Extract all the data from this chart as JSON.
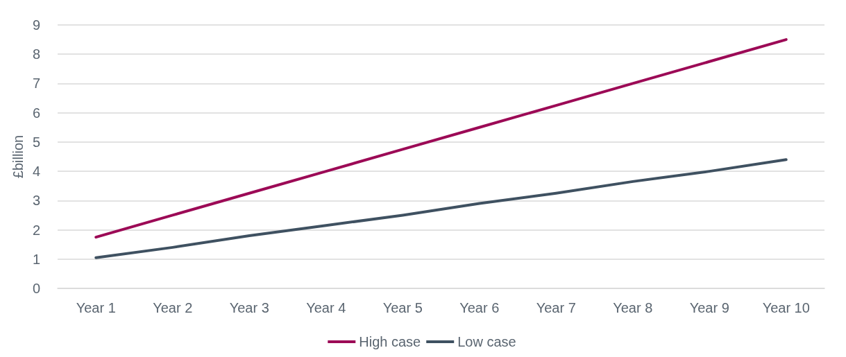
{
  "chart_data": {
    "type": "line",
    "ylabel": "£billion",
    "categories": [
      "Year 1",
      "Year 2",
      "Year 3",
      "Year 4",
      "Year 5",
      "Year 6",
      "Year 7",
      "Year 8",
      "Year 9",
      "Year 10"
    ],
    "series": [
      {
        "name": "High case",
        "color": "#9c0a56",
        "values": [
          1.75,
          2.5,
          3.25,
          4.0,
          4.75,
          5.5,
          6.25,
          7.0,
          7.75,
          8.5
        ]
      },
      {
        "name": "Low case",
        "color": "#3f5161",
        "values": [
          1.05,
          1.4,
          1.8,
          2.15,
          2.5,
          2.9,
          3.25,
          3.65,
          4.0,
          4.4
        ]
      }
    ],
    "ylim": [
      0,
      9
    ],
    "yticks": [
      0,
      1,
      2,
      3,
      4,
      5,
      6,
      7,
      8,
      9
    ],
    "grid": "y",
    "legend": "bottom",
    "marker": "none",
    "line_style": "solid"
  }
}
